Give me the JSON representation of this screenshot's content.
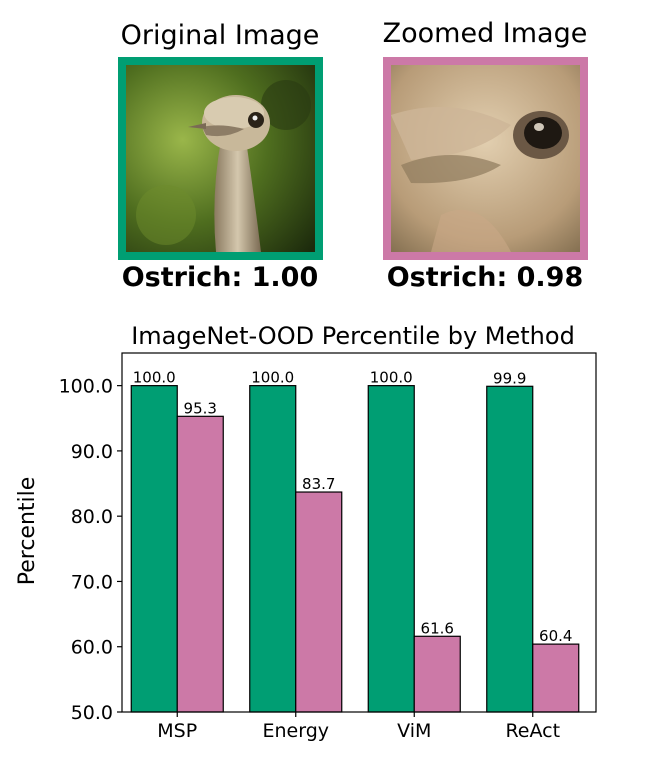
{
  "top": {
    "left_title": "Original Image",
    "right_title": "Zoomed Image",
    "left_prediction": "Ostrich: 1.00",
    "right_prediction": "Ostrich: 0.98"
  },
  "colors": {
    "original": "#009e73",
    "zoomed": "#cc79a7",
    "bar_edge": "#000000"
  },
  "chart_data": {
    "type": "bar",
    "title": "ImageNet-OOD Percentile by Method",
    "xlabel": "",
    "ylabel": "Percentile",
    "categories": [
      "MSP",
      "Energy",
      "ViM",
      "ReAct"
    ],
    "series": [
      {
        "values": [
          100.0,
          100.0,
          100.0,
          99.9
        ],
        "labels": [
          "100.0",
          "100.0",
          "100.0",
          "99.9"
        ],
        "color": "#009e73"
      },
      {
        "values": [
          95.3,
          83.7,
          61.6,
          60.4
        ],
        "labels": [
          "95.3",
          "83.7",
          "61.6",
          "60.4"
        ],
        "color": "#cc79a7"
      }
    ],
    "ylim": [
      50,
      105
    ],
    "yticks": [
      "50.0",
      "60.0",
      "70.0",
      "80.0",
      "90.0",
      "100.0"
    ],
    "ytick_values": [
      50,
      60,
      70,
      80,
      90,
      100
    ],
    "legend": "none",
    "grid": false
  }
}
